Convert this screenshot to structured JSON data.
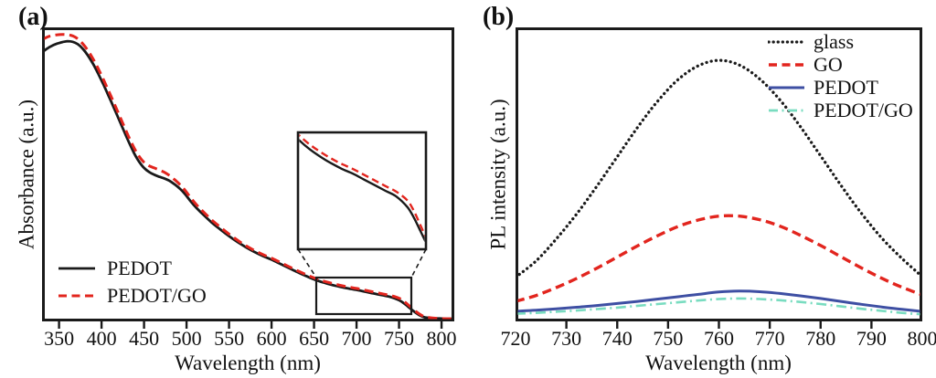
{
  "figure_type": "two-panel spectroscopy figure",
  "chart_data": [
    {
      "type": "line",
      "panel": "a",
      "panel_label": "(a)",
      "xlabel": "Wavelength (nm)",
      "ylabel": "Absorbance (a.u.)",
      "x_range": [
        330,
        815
      ],
      "x_ticks": [
        350,
        400,
        450,
        500,
        550,
        600,
        650,
        700,
        750,
        800
      ],
      "y_units": "arbitrary units (normalized 0-1, no y ticks shown)",
      "grid": false,
      "legend_position": "lower-left inside",
      "series": [
        {
          "name": "PEDOT",
          "color": "#1a1a1a",
          "style": "solid",
          "points": [
            [
              330,
              0.915
            ],
            [
              336,
              0.928
            ],
            [
              342,
              0.938
            ],
            [
              348,
              0.945
            ],
            [
              354,
              0.95
            ],
            [
              360,
              0.953
            ],
            [
              366,
              0.951
            ],
            [
              372,
              0.943
            ],
            [
              378,
              0.927
            ],
            [
              384,
              0.904
            ],
            [
              390,
              0.876
            ],
            [
              396,
              0.843
            ],
            [
              402,
              0.807
            ],
            [
              408,
              0.769
            ],
            [
              414,
              0.73
            ],
            [
              420,
              0.69
            ],
            [
              426,
              0.65
            ],
            [
              432,
              0.611
            ],
            [
              438,
              0.574
            ],
            [
              444,
              0.544
            ],
            [
              450,
              0.522
            ],
            [
              456,
              0.508
            ],
            [
              462,
              0.499
            ],
            [
              468,
              0.492
            ],
            [
              474,
              0.486
            ],
            [
              480,
              0.478
            ],
            [
              486,
              0.466
            ],
            [
              492,
              0.452
            ],
            [
              498,
              0.434
            ],
            [
              505,
              0.408
            ],
            [
              512,
              0.385
            ],
            [
              520,
              0.362
            ],
            [
              530,
              0.335
            ],
            [
              540,
              0.312
            ],
            [
              550,
              0.29
            ],
            [
              560,
              0.27
            ],
            [
              570,
              0.252
            ],
            [
              580,
              0.236
            ],
            [
              590,
              0.222
            ],
            [
              600,
              0.21
            ],
            [
              610,
              0.196
            ],
            [
              620,
              0.182
            ],
            [
              630,
              0.168
            ],
            [
              640,
              0.155
            ],
            [
              650,
              0.143
            ],
            [
              660,
              0.133
            ],
            [
              670,
              0.125
            ],
            [
              680,
              0.118
            ],
            [
              690,
              0.112
            ],
            [
              700,
              0.107
            ],
            [
              710,
              0.101
            ],
            [
              720,
              0.095
            ],
            [
              730,
              0.089
            ],
            [
              740,
              0.083
            ],
            [
              750,
              0.072
            ],
            [
              756,
              0.061
            ],
            [
              762,
              0.047
            ],
            [
              768,
              0.033
            ],
            [
              774,
              0.021
            ],
            [
              780,
              0.014
            ],
            [
              788,
              0.011
            ],
            [
              798,
              0.01
            ],
            [
              806,
              0.009
            ],
            [
              815,
              0.009
            ]
          ]
        },
        {
          "name": "PEDOT/GO",
          "color": "#e2251e",
          "style": "dashed",
          "points": [
            [
              330,
              0.958
            ],
            [
              336,
              0.967
            ],
            [
              342,
              0.972
            ],
            [
              348,
              0.975
            ],
            [
              354,
              0.976
            ],
            [
              360,
              0.975
            ],
            [
              366,
              0.971
            ],
            [
              372,
              0.961
            ],
            [
              378,
              0.944
            ],
            [
              384,
              0.921
            ],
            [
              390,
              0.893
            ],
            [
              396,
              0.86
            ],
            [
              402,
              0.824
            ],
            [
              408,
              0.786
            ],
            [
              414,
              0.747
            ],
            [
              420,
              0.707
            ],
            [
              426,
              0.667
            ],
            [
              432,
              0.628
            ],
            [
              438,
              0.592
            ],
            [
              444,
              0.562
            ],
            [
              450,
              0.541
            ],
            [
              456,
              0.529
            ],
            [
              462,
              0.522
            ],
            [
              468,
              0.515
            ],
            [
              474,
              0.507
            ],
            [
              480,
              0.496
            ],
            [
              486,
              0.482
            ],
            [
              492,
              0.466
            ],
            [
              498,
              0.447
            ],
            [
              505,
              0.42
            ],
            [
              512,
              0.396
            ],
            [
              520,
              0.372
            ],
            [
              530,
              0.344
            ],
            [
              540,
              0.32
            ],
            [
              550,
              0.297
            ],
            [
              560,
              0.276
            ],
            [
              570,
              0.257
            ],
            [
              580,
              0.241
            ],
            [
              590,
              0.227
            ],
            [
              600,
              0.215
            ],
            [
              610,
              0.201
            ],
            [
              620,
              0.187
            ],
            [
              630,
              0.173
            ],
            [
              640,
              0.16
            ],
            [
              650,
              0.148
            ],
            [
              660,
              0.138
            ],
            [
              670,
              0.13
            ],
            [
              680,
              0.123
            ],
            [
              690,
              0.117
            ],
            [
              700,
              0.112
            ],
            [
              710,
              0.106
            ],
            [
              720,
              0.1
            ],
            [
              730,
              0.094
            ],
            [
              740,
              0.088
            ],
            [
              750,
              0.079
            ],
            [
              756,
              0.068
            ],
            [
              762,
              0.053
            ],
            [
              768,
              0.038
            ],
            [
              774,
              0.025
            ],
            [
              780,
              0.016
            ],
            [
              788,
              0.012
            ],
            [
              798,
              0.01
            ],
            [
              806,
              0.009
            ],
            [
              815,
              0.009
            ]
          ]
        }
      ],
      "inset": {
        "description": "zoomed view of 650-765 nm tail region, linked by dashed connectors to a small rectangle on the main curves",
        "x_window": [
          650,
          767
        ],
        "y_window": [
          0.028,
          0.15
        ]
      }
    },
    {
      "type": "line",
      "panel": "b",
      "panel_label": "(b)",
      "xlabel": "Wavelength (nm)",
      "ylabel": "PL intensity (a.u.)",
      "x_range": [
        720,
        800
      ],
      "x_ticks": [
        720,
        730,
        740,
        750,
        760,
        770,
        780,
        790,
        800
      ],
      "y_units": "arbitrary units (normalized 0-1, no y ticks shown)",
      "grid": false,
      "legend_position": "upper-right inside",
      "peak_wavelength_nm": 761,
      "series": [
        {
          "name": "glass",
          "color": "#1a1a1a",
          "style": "dotted",
          "points": [
            [
              720,
              0.15
            ],
            [
              724,
              0.205
            ],
            [
              728,
              0.28
            ],
            [
              732,
              0.365
            ],
            [
              736,
              0.46
            ],
            [
              740,
              0.56
            ],
            [
              744,
              0.66
            ],
            [
              748,
              0.75
            ],
            [
              752,
              0.823
            ],
            [
              756,
              0.87
            ],
            [
              760,
              0.888
            ],
            [
              764,
              0.872
            ],
            [
              768,
              0.825
            ],
            [
              772,
              0.753
            ],
            [
              776,
              0.663
            ],
            [
              780,
              0.563
            ],
            [
              784,
              0.463
            ],
            [
              788,
              0.368
            ],
            [
              792,
              0.284
            ],
            [
              796,
              0.214
            ],
            [
              800,
              0.152
            ]
          ]
        },
        {
          "name": "GO",
          "color": "#e2251e",
          "style": "dashed",
          "points": [
            [
              720,
              0.068
            ],
            [
              724,
              0.088
            ],
            [
              728,
              0.115
            ],
            [
              732,
              0.146
            ],
            [
              736,
              0.181
            ],
            [
              740,
              0.219
            ],
            [
              744,
              0.257
            ],
            [
              748,
              0.292
            ],
            [
              752,
              0.323
            ],
            [
              756,
              0.345
            ],
            [
              760,
              0.358
            ],
            [
              764,
              0.358
            ],
            [
              768,
              0.346
            ],
            [
              772,
              0.324
            ],
            [
              776,
              0.293
            ],
            [
              780,
              0.258
            ],
            [
              784,
              0.22
            ],
            [
              788,
              0.182
            ],
            [
              792,
              0.147
            ],
            [
              796,
              0.116
            ],
            [
              800,
              0.09
            ]
          ]
        },
        {
          "name": "PEDOT",
          "color": "#3e4fa3",
          "style": "solid",
          "points": [
            [
              720,
              0.034
            ],
            [
              724,
              0.038
            ],
            [
              728,
              0.043
            ],
            [
              732,
              0.048
            ],
            [
              736,
              0.054
            ],
            [
              740,
              0.061
            ],
            [
              744,
              0.068
            ],
            [
              748,
              0.076
            ],
            [
              752,
              0.084
            ],
            [
              756,
              0.092
            ],
            [
              760,
              0.1
            ],
            [
              764,
              0.103
            ],
            [
              768,
              0.101
            ],
            [
              772,
              0.095
            ],
            [
              776,
              0.087
            ],
            [
              780,
              0.078
            ],
            [
              784,
              0.068
            ],
            [
              788,
              0.058
            ],
            [
              792,
              0.049
            ],
            [
              796,
              0.041
            ],
            [
              800,
              0.034
            ]
          ]
        },
        {
          "name": "PEDOT/GO",
          "color": "#79dcc0",
          "style": "dashdot",
          "points": [
            [
              720,
              0.026
            ],
            [
              724,
              0.029
            ],
            [
              728,
              0.033
            ],
            [
              732,
              0.037
            ],
            [
              736,
              0.042
            ],
            [
              740,
              0.047
            ],
            [
              744,
              0.053
            ],
            [
              748,
              0.059
            ],
            [
              752,
              0.065
            ],
            [
              756,
              0.071
            ],
            [
              760,
              0.076
            ],
            [
              764,
              0.078
            ],
            [
              768,
              0.076
            ],
            [
              772,
              0.072
            ],
            [
              776,
              0.066
            ],
            [
              780,
              0.059
            ],
            [
              784,
              0.051
            ],
            [
              788,
              0.043
            ],
            [
              792,
              0.036
            ],
            [
              796,
              0.029
            ],
            [
              800,
              0.024
            ]
          ]
        }
      ]
    }
  ]
}
